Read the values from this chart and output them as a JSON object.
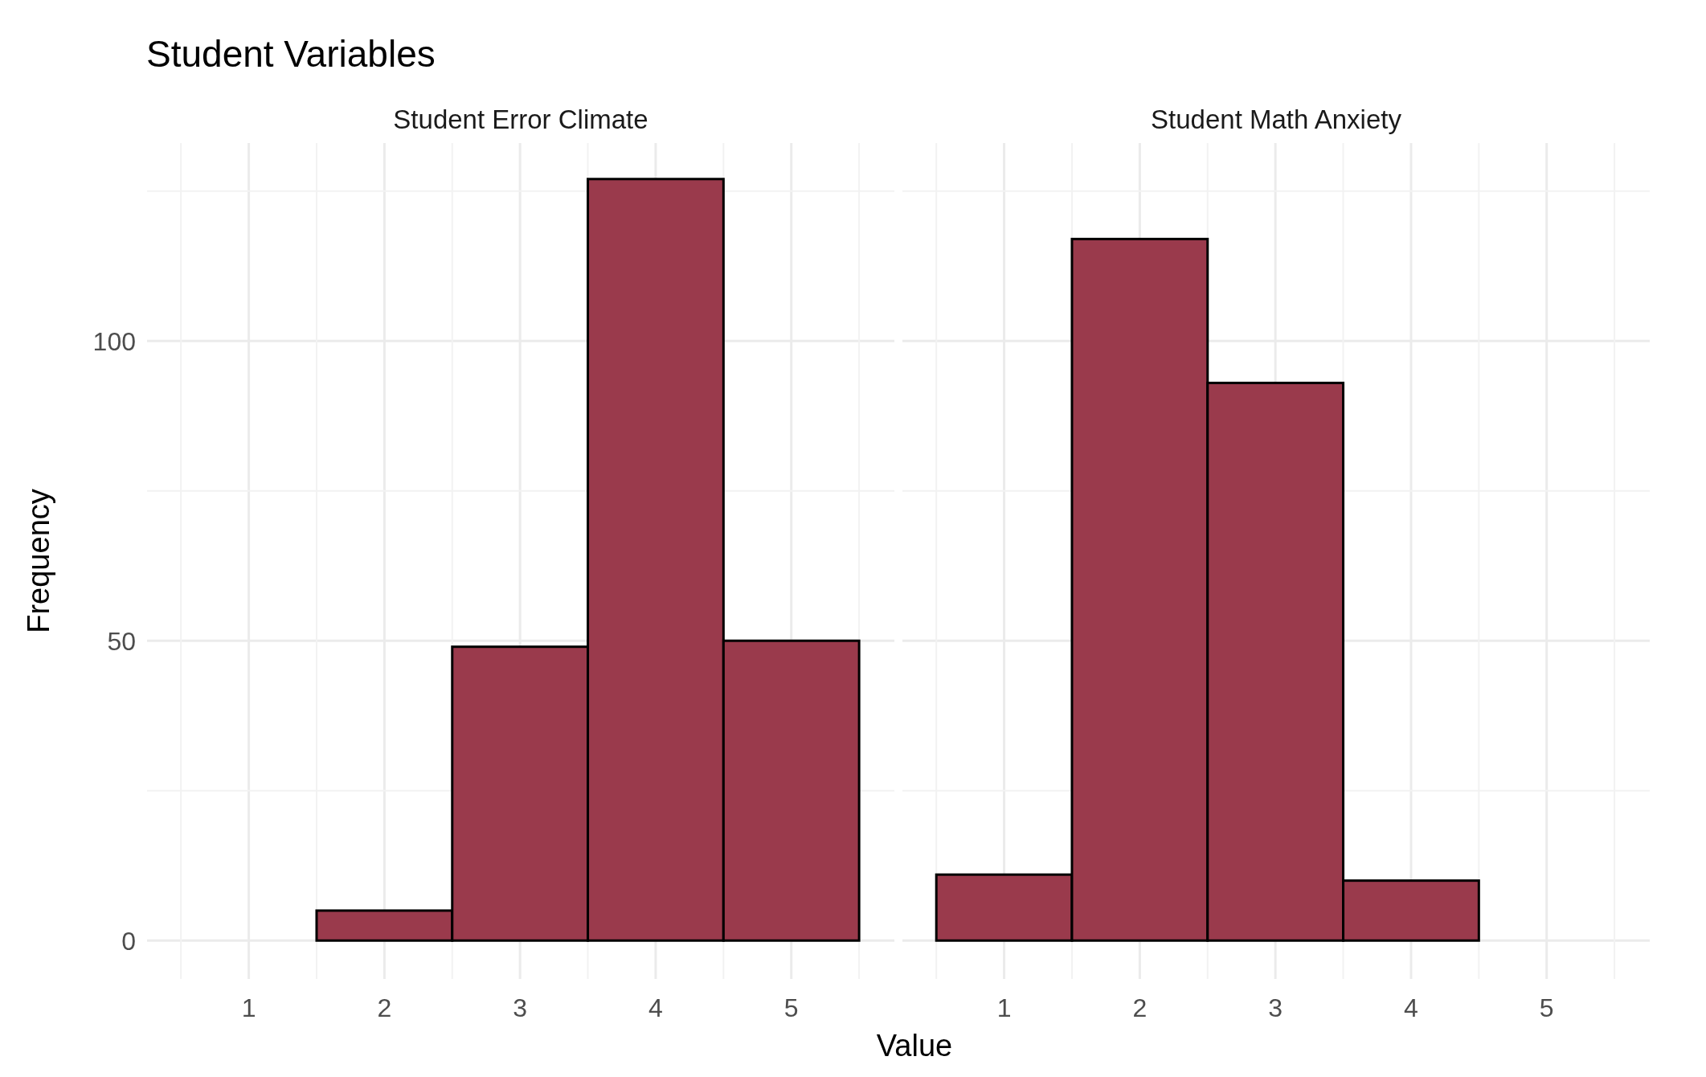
{
  "chart_data": [
    {
      "type": "histogram",
      "title": "Student Variables",
      "subtitle": "Student Error Climate",
      "xlabel": "Value",
      "ylabel": "Frequency",
      "bins": [
        0.5,
        1.5,
        2.5,
        3.5,
        4.5,
        5.5
      ],
      "values": [
        0,
        5,
        49,
        127,
        50
      ],
      "color": "#9a3a4c",
      "xlim": [
        0.25,
        5.76
      ],
      "xticks": [
        1,
        2,
        3,
        4,
        5
      ],
      "ylim": [
        -6.4,
        133
      ],
      "yticks": [
        0,
        50,
        100
      ],
      "grid": true
    },
    {
      "type": "histogram",
      "subtitle": "Student Math Anxiety",
      "bins": [
        0.5,
        1.5,
        2.5,
        3.5,
        4.5,
        5.5
      ],
      "values": [
        11,
        117,
        93,
        10,
        0
      ],
      "color": "#9a3a4c",
      "xlim": [
        0.25,
        5.76
      ],
      "xticks": [
        1,
        2,
        3,
        4,
        5
      ],
      "ylim": [
        -6.4,
        133
      ],
      "yticks": [
        0,
        50,
        100
      ],
      "grid": true,
      "tick_labels": "x"
    }
  ]
}
